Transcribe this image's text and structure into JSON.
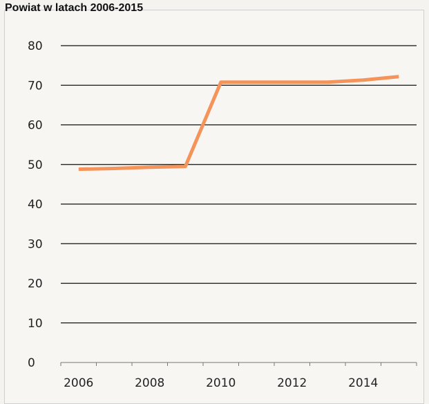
{
  "title": "Powiat w latach 2006-2015",
  "colors": {
    "line": "#f4935a",
    "grid": "#111111",
    "axis": "#777777"
  },
  "chart_data": {
    "type": "line",
    "title": "Powiat w latach 2006-2015",
    "x": [
      2006,
      2007,
      2008,
      2009,
      2010,
      2011,
      2012,
      2013,
      2014,
      2015
    ],
    "xticks": [
      "2006",
      "2008",
      "2010",
      "2012",
      "2014"
    ],
    "xlim": [
      2005.5,
      2015.5
    ],
    "ylim": [
      0,
      80
    ],
    "yticks": [
      "0",
      "10",
      "20",
      "30",
      "40",
      "50",
      "60",
      "70",
      "80"
    ],
    "series": [
      {
        "values": [
          48.8,
          49.0,
          49.3,
          49.5,
          70.8,
          70.8,
          70.8,
          70.8,
          71.3,
          72.2
        ]
      }
    ],
    "grid": true,
    "xlabel": "",
    "ylabel": ""
  }
}
